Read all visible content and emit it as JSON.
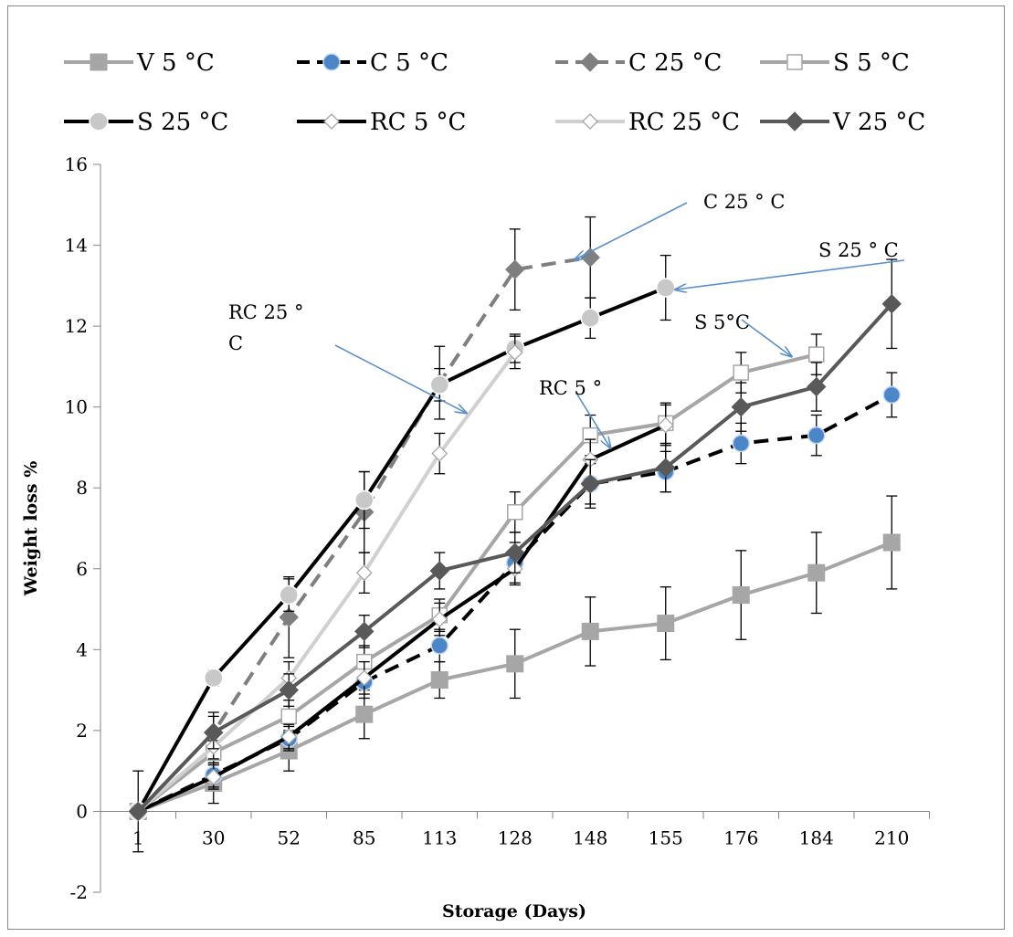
{
  "chart_data": {
    "type": "line",
    "xlabel": "Storage (Days)",
    "ylabel": "Weight loss %",
    "categories": [
      "1",
      "30",
      "52",
      "85",
      "113",
      "128",
      "148",
      "155",
      "176",
      "184",
      "210"
    ],
    "ylim": [
      -2,
      16
    ],
    "yticks": [
      -2,
      0,
      2,
      4,
      6,
      8,
      10,
      12,
      14,
      16
    ],
    "grid": false,
    "legend_position": "top",
    "series": [
      {
        "name": "V 5  °C",
        "color": "#a6a6a6",
        "dash": "solid",
        "marker": "square",
        "values": [
          0,
          0.7,
          1.5,
          2.4,
          3.25,
          3.65,
          4.45,
          4.65,
          5.35,
          5.9,
          6.65
        ],
        "errors": [
          1.0,
          0.5,
          0.5,
          0.6,
          0.45,
          0.85,
          0.85,
          0.9,
          1.1,
          1.0,
          1.15
        ]
      },
      {
        "name": "C 5  °C",
        "color": "#000000",
        "dash": "dashed",
        "marker": "circle-blue",
        "values": [
          0,
          0.9,
          1.8,
          3.2,
          4.1,
          6.15,
          8.1,
          8.4,
          9.1,
          9.3,
          10.3
        ],
        "errors": [
          0,
          0.3,
          0.3,
          0.4,
          0.4,
          0.5,
          0.5,
          0.5,
          0.5,
          0.5,
          0.55
        ]
      },
      {
        "name": "C 25 °C",
        "color": "#7f7f7f",
        "dash": "dashed",
        "marker": "diamond",
        "values": [
          0,
          1.95,
          4.8,
          7.4,
          10.6,
          13.4,
          13.7,
          null,
          null,
          null,
          null
        ],
        "errors": [
          0,
          0.5,
          1.0,
          1.0,
          0.9,
          1.0,
          1.0,
          null,
          null,
          null,
          null
        ]
      },
      {
        "name": "S 5  °C",
        "color": "#a6a6a6",
        "dash": "solid",
        "marker": "square-open",
        "values": [
          0,
          1.45,
          2.35,
          3.7,
          4.85,
          7.4,
          9.3,
          9.6,
          10.85,
          11.3,
          null
        ],
        "errors": [
          0,
          0.3,
          0.4,
          0.4,
          0.4,
          0.5,
          0.5,
          0.5,
          0.5,
          0.5,
          null
        ]
      },
      {
        "name": "S 25 °C",
        "color": "#000000",
        "dash": "solid",
        "marker": "circle-gray",
        "values": [
          0,
          3.3,
          5.35,
          7.7,
          10.55,
          11.45,
          12.2,
          12.95,
          null,
          null,
          null
        ],
        "errors": [
          0,
          0.2,
          0.4,
          0.7,
          0.4,
          0.35,
          0.5,
          0.8,
          null,
          null,
          null
        ]
      },
      {
        "name": "RC 5  °C",
        "color": "#000000",
        "dash": "solid",
        "marker": "diamond-open",
        "values": [
          0,
          0.85,
          1.85,
          3.3,
          4.75,
          6.0,
          8.7,
          9.55,
          null,
          null,
          null
        ],
        "errors": [
          0,
          0.3,
          0.3,
          0.4,
          0.4,
          0.4,
          0.5,
          0.5,
          null,
          null,
          null
        ]
      },
      {
        "name": "RC 25 °C",
        "color": "#d0d0d0",
        "dash": "solid",
        "marker": "diamond-open",
        "values": [
          0,
          1.6,
          3.3,
          5.9,
          8.85,
          11.35,
          null,
          null,
          null,
          null,
          null
        ],
        "errors": [
          0,
          0.3,
          0.4,
          0.5,
          0.5,
          0.4,
          null,
          null,
          null,
          null,
          null
        ]
      },
      {
        "name": "V 25 °C",
        "color": "#595959",
        "dash": "solid",
        "marker": "diamond",
        "values": [
          0,
          1.95,
          3.0,
          4.45,
          5.95,
          6.4,
          8.1,
          8.5,
          10.0,
          10.5,
          12.55
        ],
        "errors": [
          0,
          0.4,
          0.4,
          0.4,
          0.45,
          0.5,
          0.6,
          0.6,
          0.6,
          0.6,
          1.1
        ]
      }
    ],
    "annotations": [
      {
        "text": "C 25 ° C",
        "line2": "",
        "series": "C 25 °C"
      },
      {
        "text": "S 25 ° C",
        "line2": "",
        "series": "S 25 °C"
      },
      {
        "text": "RC 25 °",
        "line2": "C",
        "series": "RC 25 °C"
      },
      {
        "text": "S 5°C",
        "line2": "",
        "series": "S 5  °C"
      },
      {
        "text": "RC 5 °",
        "line2": "",
        "series": "RC 5  °C"
      }
    ]
  }
}
